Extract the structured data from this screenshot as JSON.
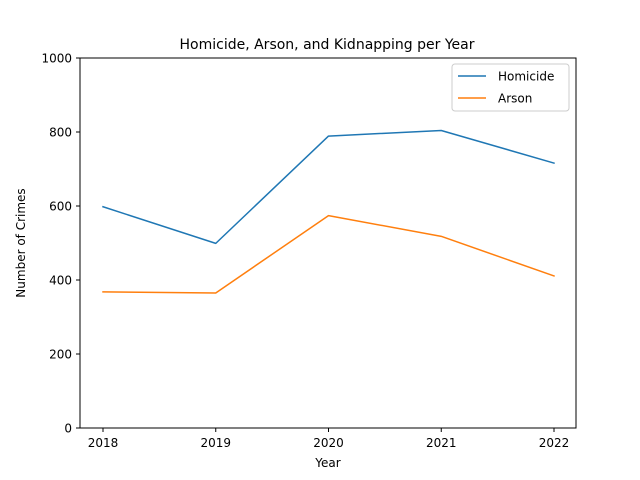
{
  "chart_data": {
    "type": "line",
    "title": "Homicide, Arson, and Kidnapping per Year",
    "xlabel": "Year",
    "ylabel": "Number of Crimes",
    "x": [
      "2018",
      "2019",
      "2020",
      "2021",
      "2022"
    ],
    "ylim": [
      0,
      1000
    ],
    "yticks": [
      0,
      200,
      400,
      600,
      800,
      1000
    ],
    "grid": false,
    "legend_position": "top-right",
    "series": [
      {
        "name": "Homicide",
        "color": "#1f77b4",
        "values": [
          598,
          499,
          789,
          804,
          716
        ]
      },
      {
        "name": "Arson",
        "color": "#ff7f0e",
        "values": [
          368,
          365,
          574,
          518,
          411
        ]
      }
    ]
  }
}
